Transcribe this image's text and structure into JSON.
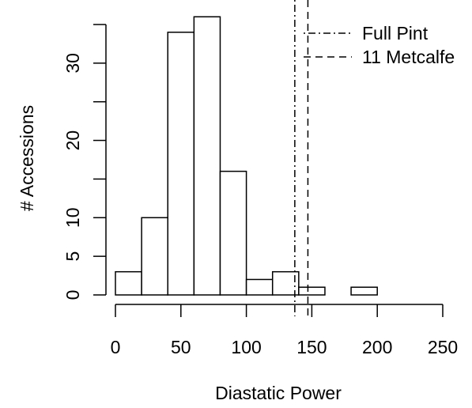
{
  "chart_data": {
    "type": "bar",
    "title": "",
    "xlabel": "Diastatic Power",
    "ylabel": "# Accessions",
    "xlim": [
      0,
      250
    ],
    "ylim": [
      0,
      35
    ],
    "x_ticks": [
      0,
      50,
      100,
      150,
      200,
      250
    ],
    "x_tick_labels": [
      "0",
      "50",
      "100",
      "150",
      "200",
      "250"
    ],
    "y_ticks": [
      0,
      5,
      10,
      15,
      20,
      25,
      30,
      35
    ],
    "y_tick_labels": [
      "0",
      "5",
      "10",
      "",
      "20",
      "",
      "30",
      ""
    ],
    "bin_width": 20,
    "bins": [
      {
        "start": 0,
        "end": 20,
        "count": 3
      },
      {
        "start": 20,
        "end": 40,
        "count": 10
      },
      {
        "start": 40,
        "end": 60,
        "count": 34
      },
      {
        "start": 60,
        "end": 80,
        "count": 36
      },
      {
        "start": 80,
        "end": 100,
        "count": 16
      },
      {
        "start": 100,
        "end": 120,
        "count": 2
      },
      {
        "start": 120,
        "end": 140,
        "count": 3
      },
      {
        "start": 140,
        "end": 160,
        "count": 1
      },
      {
        "start": 160,
        "end": 180,
        "count": 0
      },
      {
        "start": 180,
        "end": 200,
        "count": 1
      }
    ],
    "reference_lines": [
      {
        "name": "Full Pint",
        "x": 137,
        "style": "dotdash"
      },
      {
        "name": "11 Metcalfe",
        "x": 147,
        "style": "dashed"
      }
    ],
    "legend_position": "top-right",
    "grid": false,
    "colors": {
      "bar_fill": "#ffffff",
      "bar_stroke": "#000000",
      "axis": "#000000",
      "text": "#000000"
    }
  }
}
